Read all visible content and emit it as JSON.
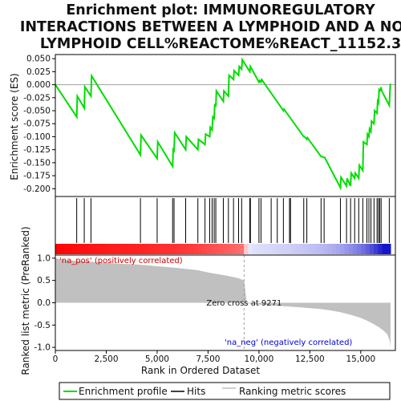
{
  "title_lines": [
    "Enrichment plot: IMMUNOREGULATORY",
    "INTERACTIONS BETWEEN A LYMPHOID AND A NON-",
    "LYMPHOID CELL%REACTOME%REACT_11152.3"
  ],
  "colors": {
    "enrichment_line": "#00dd00",
    "hit_line": "#000000",
    "ranking_fill": "#c0c0c0",
    "pos_label": "#cc0000",
    "neg_label": "#0000cc",
    "zero_line": "#a0a0a0",
    "frame": "#000000"
  },
  "chart_data": {
    "type": "line",
    "xlabel": "Rank in Ordered Dataset",
    "x_ticks": [
      0,
      2500,
      5000,
      7500,
      10000,
      12500,
      15000
    ],
    "x_tick_labels": [
      "0",
      "2,500",
      "5,000",
      "7,500",
      "10,000",
      "12,500",
      "15,000"
    ],
    "xlim": [
      0,
      16700
    ],
    "panels": {
      "enrichment": {
        "ylabel": "Enrichment score (ES)",
        "ylim": [
          -0.215,
          0.058
        ],
        "y_ticks": [
          0.05,
          0.025,
          0.0,
          -0.025,
          -0.05,
          -0.075,
          -0.1,
          -0.125,
          -0.15,
          -0.175,
          -0.2
        ],
        "y_tick_labels": [
          "0.050",
          "0.025",
          "0.000",
          "-0.025",
          "-0.050",
          "-0.075",
          "-0.100",
          "-0.125",
          "-0.150",
          "-0.175",
          "-0.200"
        ],
        "series": [
          {
            "name": "Enrichment profile",
            "x": [
              0,
              1050,
              1080,
              1420,
              1450,
              1750,
              1780,
              4180,
              4210,
              5000,
              5030,
              5760,
              5790,
              5830,
              5860,
              6400,
              6430,
              7000,
              7030,
              7350,
              7380,
              7580,
              7610,
              7700,
              7730,
              7800,
              7830,
              7880,
              7910,
              8250,
              8280,
              8500,
              8530,
              8750,
              8780,
              9000,
              9030,
              9150,
              9180,
              9550,
              9580,
              10000,
              10030,
              10100,
              10130,
              11200,
              11230,
              12200,
              12230,
              12350,
              12380,
              13050,
              13080,
              13200,
              13230,
              14000,
              14030,
              14300,
              14330,
              14500,
              14530,
              14700,
              14730,
              14900,
              14930,
              15100,
              15130,
              15300,
              15330,
              15400,
              15430,
              15500,
              15530,
              15650,
              15680,
              15800,
              15830,
              15870,
              15900,
              15930,
              15960,
              16000,
              16030,
              16400,
              16450
            ],
            "y": [
              0.0,
              -0.062,
              -0.022,
              -0.045,
              -0.004,
              -0.022,
              0.017,
              -0.135,
              -0.097,
              -0.142,
              -0.11,
              -0.157,
              -0.125,
              -0.127,
              -0.092,
              -0.125,
              -0.1,
              -0.125,
              -0.105,
              -0.115,
              -0.095,
              -0.1,
              -0.082,
              -0.087,
              -0.062,
              -0.065,
              -0.037,
              -0.042,
              -0.012,
              -0.032,
              -0.012,
              -0.022,
              0.018,
              0.01,
              0.027,
              0.018,
              0.035,
              0.03,
              0.048,
              0.025,
              0.035,
              0.005,
              0.008,
              0.005,
              0.01,
              -0.05,
              -0.047,
              -0.1,
              -0.1,
              -0.105,
              -0.102,
              -0.138,
              -0.138,
              -0.14,
              -0.14,
              -0.198,
              -0.178,
              -0.195,
              -0.18,
              -0.195,
              -0.17,
              -0.18,
              -0.17,
              -0.18,
              -0.155,
              -0.165,
              -0.11,
              -0.115,
              -0.095,
              -0.1,
              -0.085,
              -0.09,
              -0.07,
              -0.075,
              -0.05,
              -0.055,
              -0.032,
              -0.035,
              -0.01,
              -0.012,
              -0.01,
              -0.005,
              -0.012,
              -0.04,
              0.002
            ]
          }
        ]
      },
      "hits": {
        "series_name": "Hits",
        "positions": [
          1050,
          1420,
          1750,
          4180,
          5000,
          5760,
          5830,
          6400,
          7000,
          7350,
          7580,
          7700,
          7800,
          7880,
          8250,
          8500,
          8750,
          9000,
          9150,
          9550,
          9580,
          10000,
          10100,
          10600,
          10900,
          11200,
          11500,
          11550,
          12200,
          12350,
          13050,
          13200,
          14000,
          14300,
          14500,
          14700,
          14900,
          15100,
          15300,
          15400,
          15500,
          15650,
          15800,
          15870,
          15930,
          16000,
          16400
        ]
      },
      "ranking": {
        "ylabel": "Ranked list metric (PreRanked)",
        "series_name": "Ranking metric scores",
        "ylim": [
          -1.07,
          1.07
        ],
        "y_ticks": [
          1.0,
          0.5,
          0.0,
          -0.5,
          -1.0
        ],
        "y_tick_labels": [
          "1.0",
          "0.5",
          "0.0",
          "-0.5",
          "-1.0"
        ],
        "x": [
          0,
          200,
          500,
          1000,
          1500,
          2000,
          3000,
          4000,
          5000,
          6000,
          7000,
          7500,
          8000,
          8500,
          9000,
          9271,
          9400,
          10000,
          11000,
          12000,
          13000,
          13500,
          14000,
          14500,
          15000,
          15300,
          15600,
          15900,
          16100,
          16300,
          16420,
          16460
        ],
        "y": [
          1.0,
          0.98,
          0.96,
          0.94,
          0.93,
          0.91,
          0.88,
          0.86,
          0.82,
          0.78,
          0.73,
          0.68,
          0.64,
          0.6,
          0.55,
          0.5,
          -0.01,
          -0.04,
          -0.07,
          -0.1,
          -0.14,
          -0.17,
          -0.21,
          -0.27,
          -0.34,
          -0.4,
          -0.47,
          -0.55,
          -0.62,
          -0.7,
          -0.85,
          -1.0
        ],
        "annotations": {
          "pos": "'na_pos' (positively correlated)",
          "neg": "'na_neg' (negatively correlated)",
          "zero": "Zero cross at 9271"
        },
        "zero_cross": 9271
      }
    }
  },
  "legend": {
    "items": [
      {
        "label": "Enrichment profile",
        "color": "#00dd00"
      },
      {
        "label": "Hits",
        "color": "#000000"
      },
      {
        "label": "Ranking metric scores",
        "color": "#c0c0c0"
      }
    ]
  }
}
